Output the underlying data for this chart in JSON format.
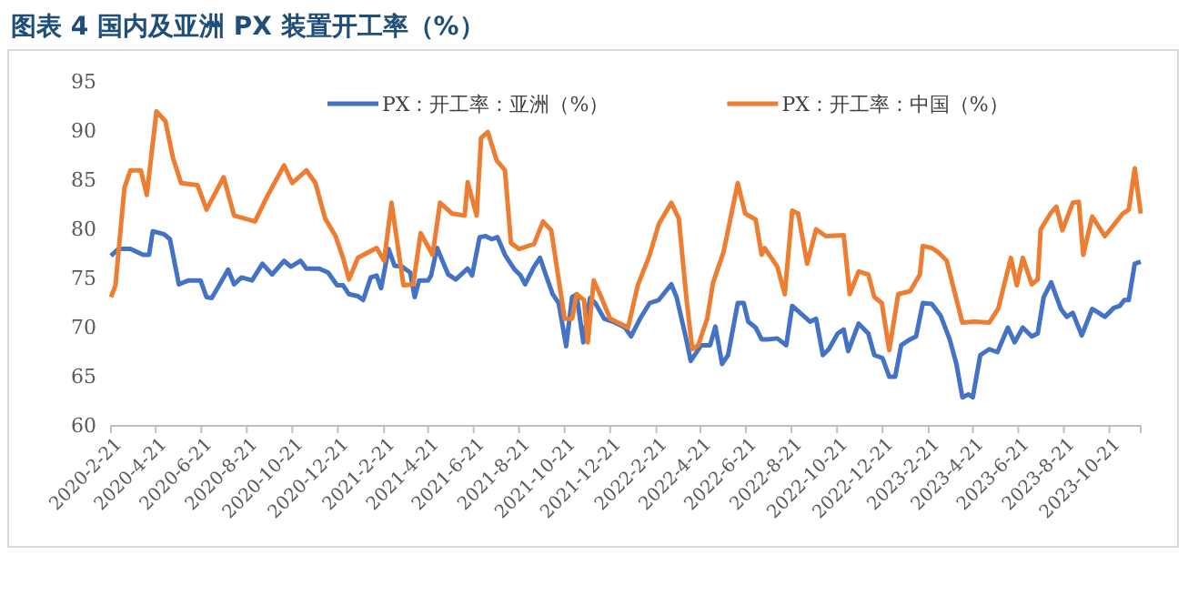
{
  "chart_data": {
    "type": "line",
    "title": "图表 4 国内及亚洲 PX 装置开工率（%）",
    "xlim": [
      "2020-02-21",
      "2023-12-02"
    ],
    "xticks": [
      {
        "value": "2020-02-21",
        "label": "2020-2-21"
      },
      {
        "value": "2020-04-21",
        "label": "2020-4-21"
      },
      {
        "value": "2020-06-21",
        "label": "2020-6-21"
      },
      {
        "value": "2020-08-21",
        "label": "2020-8-21"
      },
      {
        "value": "2020-10-21",
        "label": "2020-10-21"
      },
      {
        "value": "2020-12-21",
        "label": "2020-12-21"
      },
      {
        "value": "2021-02-21",
        "label": "2021-2-21"
      },
      {
        "value": "2021-04-21",
        "label": "2021-4-21"
      },
      {
        "value": "2021-06-21",
        "label": "2021-6-21"
      },
      {
        "value": "2021-08-21",
        "label": "2021-8-21"
      },
      {
        "value": "2021-10-21",
        "label": "2021-10-21"
      },
      {
        "value": "2021-12-21",
        "label": "2021-12-21"
      },
      {
        "value": "2022-02-21",
        "label": "2022-2-21"
      },
      {
        "value": "2022-04-21",
        "label": "2022-4-21"
      },
      {
        "value": "2022-06-21",
        "label": "2022-6-21"
      },
      {
        "value": "2022-08-21",
        "label": "2022-8-21"
      },
      {
        "value": "2022-10-21",
        "label": "2022-10-21"
      },
      {
        "value": "2022-12-21",
        "label": "2022-12-21"
      },
      {
        "value": "2023-02-21",
        "label": "2023-2-21"
      },
      {
        "value": "2023-04-21",
        "label": "2023-4-21"
      },
      {
        "value": "2023-06-21",
        "label": "2023-6-21"
      },
      {
        "value": "2023-08-21",
        "label": "2023-8-21"
      },
      {
        "value": "2023-10-21",
        "label": "2023-10-21"
      }
    ],
    "ylim": [
      60,
      95
    ],
    "yticks": [
      60,
      65,
      70,
      75,
      80,
      85,
      90,
      95
    ],
    "grid": false,
    "legend": "top",
    "line_style": "solid",
    "marker": "none",
    "series": [
      {
        "name": "PX：开工率：亚洲（%）",
        "color": "#4472c4",
        "x": [
          "2020-02-21",
          "2020-03-02",
          "2020-03-18",
          "2020-04-04",
          "2020-04-12",
          "2020-04-17",
          "2020-05-02",
          "2020-05-10",
          "2020-05-22",
          "2020-06-04",
          "2020-06-20",
          "2020-06-28",
          "2020-07-05",
          "2020-07-15",
          "2020-07-27",
          "2020-08-04",
          "2020-08-14",
          "2020-08-28",
          "2020-09-11",
          "2020-09-24",
          "2020-10-10",
          "2020-10-19",
          "2020-11-01",
          "2020-11-09",
          "2020-11-26",
          "2020-12-08",
          "2020-12-20",
          "2020-12-28",
          "2021-01-05",
          "2021-01-17",
          "2021-01-24",
          "2021-02-03",
          "2021-02-11",
          "2021-02-17",
          "2021-02-27",
          "2021-03-07",
          "2021-03-17",
          "2021-03-28",
          "2021-04-03",
          "2021-04-09",
          "2021-04-21",
          "2021-04-25",
          "2021-05-03",
          "2021-05-18",
          "2021-05-28",
          "2021-06-13",
          "2021-06-19",
          "2021-06-29",
          "2021-07-07",
          "2021-07-15",
          "2021-07-23",
          "2021-08-02",
          "2021-08-15",
          "2021-08-23",
          "2021-08-29",
          "2021-09-10",
          "2021-09-18",
          "2021-09-26",
          "2021-10-05",
          "2021-10-13",
          "2021-10-23",
          "2021-10-31",
          "2021-11-06",
          "2021-11-15",
          "2021-11-24",
          "2021-12-01",
          "2021-12-13",
          "2021-12-25",
          "2022-01-10",
          "2022-01-18",
          "2022-01-30",
          "2022-02-12",
          "2022-02-24",
          "2022-03-13",
          "2022-03-20",
          "2022-04-02",
          "2022-04-08",
          "2022-04-22",
          "2022-05-04",
          "2022-05-11",
          "2022-05-20",
          "2022-05-28",
          "2022-06-10",
          "2022-06-18",
          "2022-06-24",
          "2022-07-04",
          "2022-07-12",
          "2022-07-20",
          "2022-08-02",
          "2022-08-14",
          "2022-08-22",
          "2022-09-03",
          "2022-09-15",
          "2022-09-23",
          "2022-10-02",
          "2022-10-10",
          "2022-10-22",
          "2022-10-30",
          "2022-11-05",
          "2022-11-19",
          "2022-12-02",
          "2022-12-10",
          "2022-12-21",
          "2022-12-30",
          "2023-01-07",
          "2023-01-15",
          "2023-01-27",
          "2023-02-04",
          "2023-02-13",
          "2023-02-25",
          "2023-03-09",
          "2023-03-21",
          "2023-03-30",
          "2023-04-07",
          "2023-04-15",
          "2023-04-21",
          "2023-05-01",
          "2023-05-13",
          "2023-05-24",
          "2023-06-07",
          "2023-06-16",
          "2023-06-27",
          "2023-07-09",
          "2023-07-17",
          "2023-07-25",
          "2023-08-04",
          "2023-08-17",
          "2023-08-25",
          "2023-09-02",
          "2023-09-14",
          "2023-09-28",
          "2023-10-15",
          "2023-10-27",
          "2023-11-04",
          "2023-11-10",
          "2023-11-16",
          "2023-11-24",
          "2023-12-02"
        ],
        "values": [
          77.3,
          78,
          78,
          77.4,
          77.4,
          79.8,
          79.5,
          79,
          74.4,
          74.8,
          74.8,
          73.1,
          73,
          74.3,
          75.9,
          74.4,
          75.1,
          74.8,
          76.5,
          75.4,
          76.8,
          76.2,
          76.8,
          76,
          76,
          75.6,
          74.3,
          74.3,
          73.4,
          73.2,
          72.8,
          75.1,
          75.3,
          74,
          78,
          76.3,
          76.2,
          75.6,
          73.1,
          74.8,
          74.8,
          75.3,
          78.1,
          75.4,
          74.9,
          76,
          75.3,
          79.2,
          79.3,
          79,
          79.2,
          77.4,
          75.9,
          75.3,
          74.4,
          76.2,
          77.1,
          75.3,
          73.4,
          72.5,
          68.1,
          73.1,
          73.4,
          68.5,
          73,
          72.5,
          70.9,
          70.6,
          70,
          69.1,
          70.9,
          72.5,
          72.8,
          74.4,
          73.1,
          68.8,
          66.6,
          68.2,
          68.2,
          70.1,
          66.3,
          67.2,
          72.5,
          72.5,
          70.6,
          70,
          68.8,
          68.8,
          68.9,
          68.2,
          72.2,
          71.4,
          70.6,
          70.9,
          67.2,
          67.8,
          69.4,
          69.8,
          67.6,
          70.4,
          69.4,
          67.2,
          66.9,
          65,
          65,
          68.2,
          68.8,
          69.1,
          72.5,
          72.4,
          71.2,
          68.8,
          66.3,
          62.9,
          63.2,
          62.9,
          67.2,
          67.8,
          67.5,
          70,
          68.5,
          70,
          69.1,
          69.4,
          73.1,
          74.6,
          71.9,
          71.1,
          71.5,
          69.2,
          71.9,
          71.1,
          72,
          72.2,
          72.8,
          72.8,
          76.5,
          76.7
        ]
      },
      {
        "name": "PX：开工率：中国（%）",
        "color": "#ed7d31",
        "x": [
          "2020-02-21",
          "2020-02-27",
          "2020-03-10",
          "2020-03-18",
          "2020-04-01",
          "2020-04-09",
          "2020-04-22",
          "2020-05-04",
          "2020-05-14",
          "2020-05-25",
          "2020-06-16",
          "2020-06-28",
          "2020-07-21",
          "2020-08-04",
          "2020-09-01",
          "2020-09-17",
          "2020-10-10",
          "2020-10-21",
          "2020-11-09",
          "2020-11-21",
          "2020-12-04",
          "2020-12-18",
          "2020-12-28",
          "2021-01-05",
          "2021-01-17",
          "2021-02-11",
          "2021-02-21",
          "2021-03-03",
          "2021-03-19",
          "2021-04-01",
          "2021-04-11",
          "2021-04-27",
          "2021-05-07",
          "2021-05-23",
          "2021-06-09",
          "2021-06-13",
          "2021-06-25",
          "2021-07-01",
          "2021-07-10",
          "2021-07-22",
          "2021-08-02",
          "2021-08-10",
          "2021-08-21",
          "2021-09-10",
          "2021-09-22",
          "2021-10-03",
          "2021-10-21",
          "2021-10-31",
          "2021-11-06",
          "2021-11-16",
          "2021-11-21",
          "2021-11-29",
          "2021-12-09",
          "2021-12-21",
          "2022-01-14",
          "2022-01-27",
          "2022-02-12",
          "2022-02-24",
          "2022-03-13",
          "2022-03-23",
          "2022-04-02",
          "2022-04-10",
          "2022-04-18",
          "2022-04-30",
          "2022-05-08",
          "2022-05-22",
          "2022-06-10",
          "2022-06-20",
          "2022-07-04",
          "2022-07-12",
          "2022-07-16",
          "2022-08-02",
          "2022-08-12",
          "2022-08-22",
          "2022-08-30",
          "2022-09-11",
          "2022-09-23",
          "2022-10-06",
          "2022-10-30",
          "2022-11-07",
          "2022-11-19",
          "2022-12-02",
          "2022-12-10",
          "2022-12-20",
          "2022-12-30",
          "2023-01-11",
          "2023-01-27",
          "2023-02-09",
          "2023-02-13",
          "2023-02-25",
          "2023-03-05",
          "2023-03-17",
          "2023-04-07",
          "2023-04-23",
          "2023-05-13",
          "2023-05-25",
          "2023-06-11",
          "2023-06-19",
          "2023-06-27",
          "2023-07-09",
          "2023-07-17",
          "2023-07-21",
          "2023-08-03",
          "2023-08-11",
          "2023-08-19",
          "2023-09-02",
          "2023-09-10",
          "2023-09-16",
          "2023-09-28",
          "2023-10-15",
          "2023-11-08",
          "2023-11-16",
          "2023-11-24",
          "2023-12-02"
        ],
        "values": [
          73.1,
          74.3,
          84.2,
          86,
          86,
          83.5,
          92,
          91,
          87.3,
          84.7,
          84.5,
          82,
          85.3,
          81.4,
          80.8,
          83.3,
          86.5,
          84.7,
          86,
          84.7,
          81.1,
          79.3,
          77.1,
          74.9,
          77.1,
          78.1,
          76.8,
          82.7,
          74.3,
          74.4,
          79.6,
          77.4,
          82.7,
          81.6,
          81.4,
          84.8,
          81.4,
          89.3,
          89.9,
          87,
          86,
          78.6,
          78,
          78.5,
          80.8,
          79.9,
          70.9,
          70.9,
          73.4,
          72.8,
          68.5,
          74.8,
          73.1,
          70.9,
          70,
          74.3,
          77.4,
          80.5,
          82.7,
          81.1,
          73.1,
          67.8,
          68.2,
          70.9,
          74.6,
          77.7,
          84.7,
          81.6,
          81,
          77.4,
          78.1,
          76.2,
          73.4,
          81.9,
          81.6,
          76.5,
          80,
          79.3,
          79.4,
          73.4,
          75.7,
          75.4,
          73.1,
          72.5,
          67.7,
          73.4,
          73.7,
          75.4,
          78.3,
          78.1,
          77.7,
          76.8,
          70.5,
          70.6,
          70.5,
          71.9,
          77.1,
          74.3,
          77.1,
          74.4,
          74.9,
          80,
          81.6,
          82.3,
          79.9,
          82.7,
          82.8,
          77.4,
          81.3,
          79.3,
          81.6,
          82,
          86.2,
          81.6
        ]
      }
    ]
  }
}
